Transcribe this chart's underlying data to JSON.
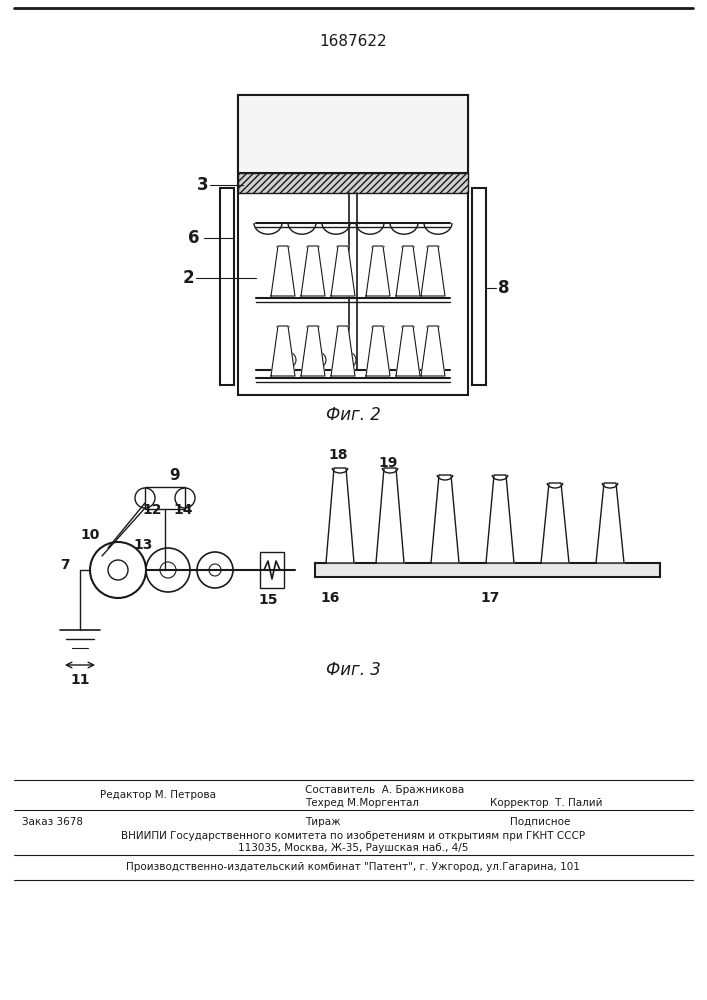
{
  "patent_number": "1687622",
  "fig2_label": "Фиг. 2",
  "fig3_label": "Фиг. 3",
  "background_color": "#ffffff",
  "line_color": "#1a1a1a",
  "footer_editor": "Редактор М. Петрова",
  "footer_compiler": "Составитель  А. Бражникова",
  "footer_tech": "Техред М.Моргентал",
  "footer_corrector": "Корректор  Т. Палий",
  "footer_order": "Заказ 3678",
  "footer_tirazh": "Тираж",
  "footer_podpisnoe": "Подписное",
  "footer_vniipи": "ВНИИПИ Государственного комитета по изобретениям и открытиям при ГКНТ СССР",
  "footer_address": "113035, Москва, Ж-35, Раушская наб., 4/5",
  "footer_patent": "Производственно-издательский комбинат \"Патент\", г. Ужгород, ул.Гагарина, 101"
}
